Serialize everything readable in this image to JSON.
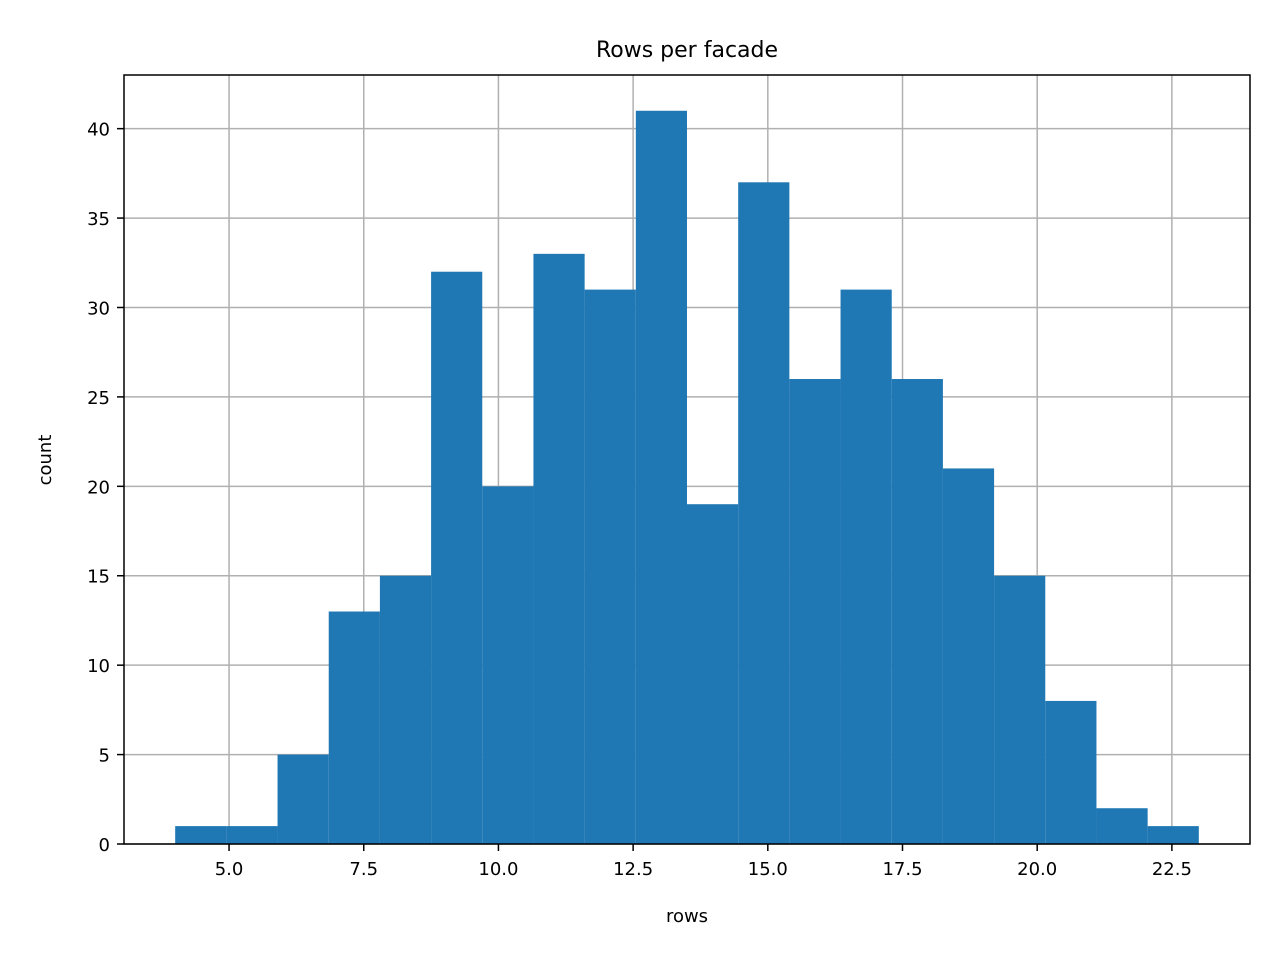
{
  "chart_data": {
    "type": "bar",
    "title": "Rows per facade",
    "xlabel": "rows",
    "ylabel": "count",
    "bin_edges": [
      4.0,
      4.95,
      5.9,
      6.85,
      7.8,
      8.75,
      9.7,
      10.65,
      11.6,
      12.55,
      13.5,
      14.45,
      15.4,
      16.35,
      17.3,
      18.25,
      19.2,
      20.15,
      21.1,
      22.05,
      23.0
    ],
    "values": [
      1,
      1,
      5,
      13,
      15,
      32,
      20,
      33,
      31,
      41,
      19,
      37,
      26,
      31,
      26,
      21,
      15,
      8,
      2,
      1
    ],
    "xlim": [
      3.05,
      23.95
    ],
    "ylim": [
      0,
      43
    ],
    "xticks": [
      5.0,
      7.5,
      10.0,
      12.5,
      15.0,
      17.5,
      20.0,
      22.5
    ],
    "xtick_labels": [
      "5.0",
      "7.5",
      "10.0",
      "12.5",
      "15.0",
      "17.5",
      "20.0",
      "22.5"
    ],
    "yticks": [
      0,
      5,
      10,
      15,
      20,
      25,
      30,
      35,
      40
    ],
    "ytick_labels": [
      "0",
      "5",
      "10",
      "15",
      "20",
      "25",
      "30",
      "35",
      "40"
    ],
    "grid": true,
    "bar_color": "#1f77b4",
    "grid_color": "#b0b0b0"
  }
}
